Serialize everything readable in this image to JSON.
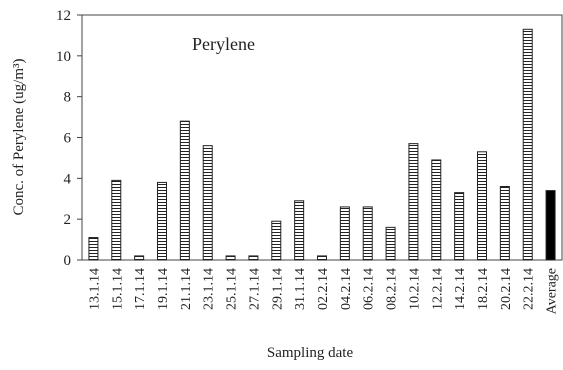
{
  "chart_data": {
    "type": "bar",
    "title": "Perylene",
    "xlabel": "Sampling date",
    "ylabel": "Conc. of Perylene (ug/m³)",
    "ylim": [
      0,
      12
    ],
    "yticks": [
      0,
      2,
      4,
      6,
      8,
      10,
      12
    ],
    "grid": false,
    "categories": [
      "13.1.14",
      "15.1.14",
      "17.1.14",
      "19.1.14",
      "21.1.14",
      "23.1.14",
      "25.1.14",
      "27.1.14",
      "29.1.14",
      "31.1.14",
      "02.2.14",
      "04.2.14",
      "06.2.14",
      "08.2.14",
      "10.2.14",
      "12.2.14",
      "14.2.14",
      "18.2.14",
      "20.2.14",
      "22.2.14",
      "Average"
    ],
    "values": [
      1.1,
      3.9,
      0.2,
      3.8,
      6.8,
      5.6,
      0.2,
      0.2,
      1.9,
      2.9,
      0.2,
      2.6,
      2.6,
      1.6,
      5.7,
      4.9,
      3.3,
      5.3,
      3.6,
      11.3,
      3.4
    ],
    "colors": {
      "bar_fill": "#ffffff",
      "bar_stroke": "#222222",
      "hatch": "#222222",
      "average_fill": "#000000"
    }
  }
}
